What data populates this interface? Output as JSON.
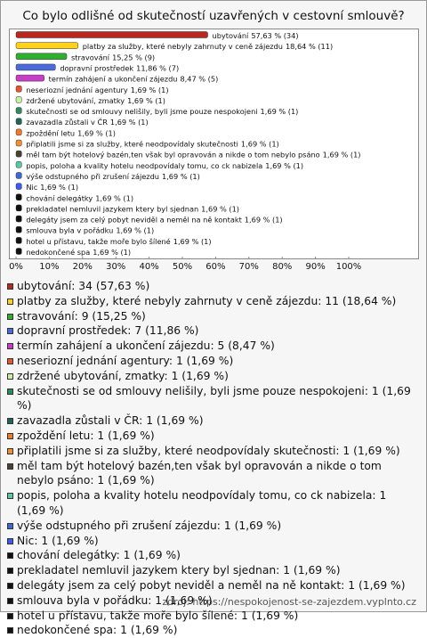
{
  "chart_data": {
    "type": "bar",
    "orientation": "horizontal",
    "title": "Co bylo odlišné od skutečností uzavřených v cestovní smlouvě?",
    "categories": [
      "ubytování",
      "platby za služby, které nebyly zahrnuty v ceně zájezdu",
      "stravování",
      "dopravní prostředek",
      "termín zahájení a ukončení zájezdu",
      "neseriozní jednání agentury",
      "zdržené ubytování, zmatky",
      "skutečnosti se od smlouvy nelišily, byli jsme pouze nespokojeni",
      "zavazadla zůstali v ČR",
      "zpoždění letu",
      "připlatili jsme si za služby, které neodpovídaly skutečnosti",
      "měl tam být hotelový bazén,ten však byl opravován a nikde o tom nebylo psáno",
      "popis, poloha a kvality hotelu neodpovídaly tomu, co ck nabizela",
      "výše odstupného při zrušení zájezdu",
      "Nic",
      "chování delegátky",
      "prekladatel nemluvil jazykem ktery byl sjednan",
      "delegáty jsem za celý pobyt neviděl a neměl na ně kontakt",
      "smlouva byla v pořádku",
      "hotel u přístavu, takže moře bylo šílené",
      "nedokončené spa"
    ],
    "values": [
      57.63,
      18.64,
      15.25,
      11.86,
      8.47,
      1.69,
      1.69,
      1.69,
      1.69,
      1.69,
      1.69,
      1.69,
      1.69,
      1.69,
      1.69,
      1.69,
      1.69,
      1.69,
      1.69,
      1.69,
      1.69
    ],
    "value_labels": [
      "57,63 % (34)",
      "18,64 % (11)",
      "15,25 % (9)",
      "11,86 % (7)",
      "8,47 % (5)",
      "1,69 % (1)",
      "1,69 % (1)",
      "1,69 % (1)",
      "1,69 % (1)",
      "1,69 % (1)",
      "1,69 % (1)",
      "1,69 % (1)",
      "1,69 % (1)",
      "1,69 % (1)",
      "1,69 % (1)",
      "1,69 % (1)",
      "1,69 % (1)",
      "1,69 % (1)",
      "1,69 % (1)",
      "1,69 % (1)",
      "1,69 % (1)"
    ],
    "colors": [
      "#b8281e",
      "#ffd21a",
      "#2fae2f",
      "#4a6bdc",
      "#c83cc8",
      "#e8542e",
      "#c9f0a0",
      "#2f8a62",
      "#1f6658",
      "#f07a2a",
      "#f0902e",
      "#4a4030",
      "#5cc8a0",
      "#3a6ad0",
      "#3a5af0",
      "#111111",
      "#111111",
      "#111111",
      "#111111",
      "#111111",
      "#111111"
    ],
    "legend_labels": [
      "ubytování: 34 (57,63 %)",
      "platby za služby, které nebyly zahrnuty v ceně zájezdu: 11 (18,64 %)",
      "stravování: 9 (15,25 %)",
      "dopravní prostředek: 7 (11,86 %)",
      "termín zahájení a ukončení zájezdu: 5 (8,47 %)",
      "neseriozní jednání agentury: 1 (1,69 %)",
      "zdržené ubytování, zmatky: 1 (1,69 %)",
      "skutečnosti se od smlouvy nelišily, byli jsme pouze nespokojeni: 1 (1,69 %)",
      "zavazadla zůstali v ČR: 1 (1,69 %)",
      "zpoždění letu: 1 (1,69 %)",
      "připlatili jsme si za služby, které neodpovídaly skutečnosti: 1 (1,69 %)",
      "měl tam být hotelový bazén,ten však byl opravován a nikde o tom nebylo psáno: 1 (1,69 %)",
      "popis, poloha a kvality hotelu neodpovídaly tomu, co ck nabizela: 1 (1,69 %)",
      "výše odstupného při zrušení zájezdu: 1 (1,69 %)",
      "Nic: 1 (1,69 %)",
      "chování delegátky: 1 (1,69 %)",
      "prekladatel nemluvil jazykem ktery byl sjednan: 1 (1,69 %)",
      "delegáty jsem za celý pobyt neviděl a neměl na ně kontakt: 1 (1,69 %)",
      "smlouva byla v pořádku: 1 (1,69 %)",
      "hotel u přístavu, takže moře bylo šílené: 1 (1,69 %)",
      "nedokončené spa: 1 (1,69 %)"
    ],
    "xlim": [
      0,
      100
    ],
    "xticks": [
      {
        "value": 0,
        "label": "0%"
      },
      {
        "value": 10,
        "label": "10%"
      },
      {
        "value": 20,
        "label": "20%"
      },
      {
        "value": 30,
        "label": "30%"
      },
      {
        "value": 40,
        "label": "40%"
      },
      {
        "value": 50,
        "label": "50%"
      },
      {
        "value": 60,
        "label": "60%"
      },
      {
        "value": 70,
        "label": "70%"
      },
      {
        "value": 80,
        "label": "80%"
      },
      {
        "value": 90,
        "label": "90%"
      },
      {
        "value": 100,
        "label": "100%"
      }
    ],
    "source": "zdroj: https://nespokojenost-se-zajezdem.vyplnto.cz"
  }
}
